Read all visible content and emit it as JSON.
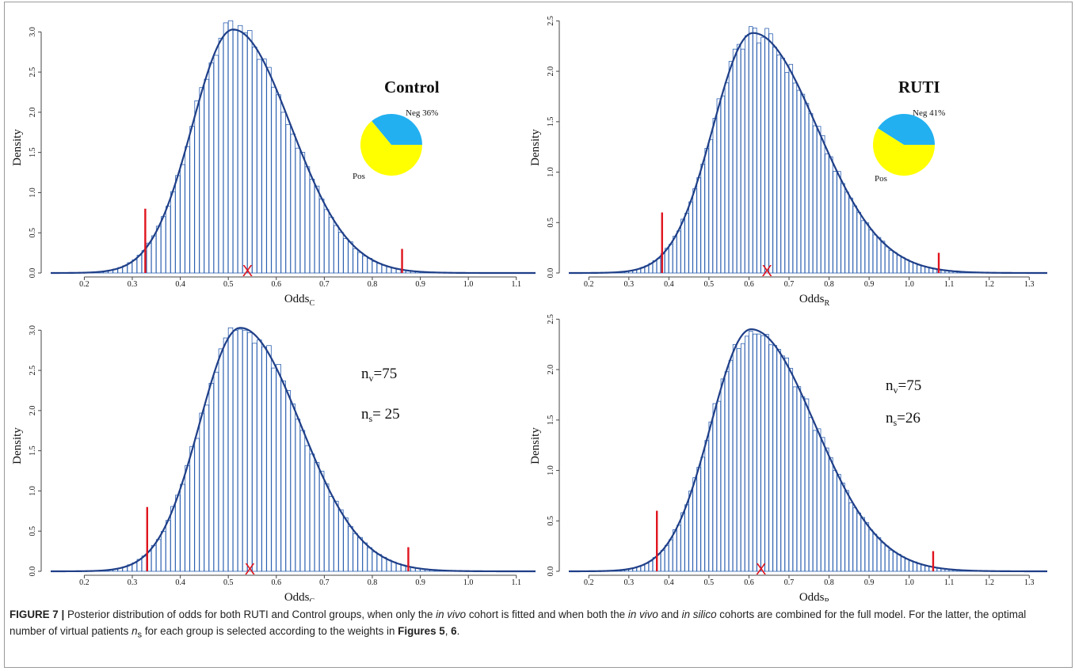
{
  "colors": {
    "bar_stroke": "#2b5fb0",
    "curve": "#1f3f88",
    "interval_line": "#e0141e",
    "mean_marker": "#e0141e",
    "pie_neg": "#22b0f0",
    "pie_pos": "#ffff00"
  },
  "caption": {
    "label": "FIGURE 7 |",
    "t1": " Posterior distribution of odds for both RUTI and Control groups, when only the ",
    "i1": "in vivo",
    "t2": " cohort is fitted and when both the ",
    "i2": "in vivo",
    "t3": " and ",
    "i3": "in silico",
    "t4": " cohorts are combined for the full model. For the latter, the optimal number of virtual patients ",
    "i4": "n",
    "sub4": "s",
    "t5": " for each group is selected according to the weights in ",
    "b1": "Figures 5",
    "t6": ", ",
    "b2": "6",
    "t7": "."
  },
  "chart_data": [
    {
      "type": "bar",
      "ylabel": "Density",
      "xlabel": {
        "main": "Odds",
        "sub": "C"
      },
      "xlim": [
        0.13,
        1.14
      ],
      "ylim": [
        0,
        3.2
      ],
      "xticks": [
        0.2,
        0.3,
        0.4,
        0.5,
        0.6,
        0.7,
        0.8,
        0.9,
        1.0,
        1.1
      ],
      "yticks": [
        0.0,
        0.5,
        1.0,
        1.5,
        2.0,
        2.5,
        3.0
      ],
      "density_curve": {
        "mode": 0.51,
        "peak": 3.03,
        "sigma_left": 0.085,
        "sigma_right": 0.12
      },
      "credible_interval": [
        {
          "x": 0.327,
          "y": 0.8
        },
        {
          "x": 0.862,
          "y": 0.3
        }
      ],
      "mean_marker": {
        "x": 0.54,
        "label": "X"
      },
      "group_label": "Control",
      "pie": {
        "slices": [
          {
            "label": "Neg 36%",
            "value": 36
          },
          {
            "label": "Pos",
            "value": 64
          }
        ]
      }
    },
    {
      "type": "bar",
      "ylabel": "Density",
      "xlabel": {
        "main": "Odds",
        "sub": "R"
      },
      "xlim": [
        0.15,
        1.345
      ],
      "ylim": [
        0,
        2.55
      ],
      "xticks": [
        0.2,
        0.3,
        0.4,
        0.5,
        0.6,
        0.7,
        0.8,
        0.9,
        1.0,
        1.1,
        1.2,
        1.3
      ],
      "yticks": [
        0.0,
        0.5,
        1.0,
        1.5,
        2.0,
        2.5
      ],
      "density_curve": {
        "mode": 0.61,
        "peak": 2.38,
        "sigma_left": 0.1,
        "sigma_right": 0.16
      },
      "credible_interval": [
        {
          "x": 0.383,
          "y": 0.6
        },
        {
          "x": 1.074,
          "y": 0.2
        }
      ],
      "mean_marker": {
        "x": 0.645,
        "label": "X"
      },
      "group_label": "RUTI",
      "pie": {
        "slices": [
          {
            "label": "Neg 41%",
            "value": 41
          },
          {
            "label": "Pos",
            "value": 59
          }
        ]
      }
    },
    {
      "type": "bar",
      "ylabel": "Density",
      "xlabel": {
        "main": "Odds",
        "sub": "C"
      },
      "xlim": [
        0.13,
        1.14
      ],
      "ylim": [
        0,
        3.2
      ],
      "xticks": [
        0.2,
        0.3,
        0.4,
        0.5,
        0.6,
        0.7,
        0.8,
        0.9,
        1.0,
        1.1
      ],
      "yticks": [
        0.0,
        0.5,
        1.0,
        1.5,
        2.0,
        2.5,
        3.0
      ],
      "density_curve": {
        "mode": 0.525,
        "peak": 3.03,
        "sigma_left": 0.085,
        "sigma_right": 0.125
      },
      "credible_interval": [
        {
          "x": 0.331,
          "y": 0.8
        },
        {
          "x": 0.875,
          "y": 0.3
        }
      ],
      "mean_marker": {
        "x": 0.545,
        "label": "X"
      },
      "annotations": [
        {
          "main": "n",
          "sub": "v",
          "rest": "=75"
        },
        {
          "main": "n",
          "sub": "s",
          "rest": "= 25"
        }
      ]
    },
    {
      "type": "bar",
      "ylabel": "Density",
      "xlabel": {
        "main": "Odds",
        "sub": "R"
      },
      "xlim": [
        0.15,
        1.345
      ],
      "ylim": [
        0,
        2.55
      ],
      "xticks": [
        0.2,
        0.3,
        0.4,
        0.5,
        0.6,
        0.7,
        0.8,
        0.9,
        1.0,
        1.1,
        1.2,
        1.3
      ],
      "yticks": [
        0.0,
        0.5,
        1.0,
        1.5,
        2.0,
        2.5
      ],
      "density_curve": {
        "mode": 0.605,
        "peak": 2.4,
        "sigma_left": 0.1,
        "sigma_right": 0.16
      },
      "credible_interval": [
        {
          "x": 0.37,
          "y": 0.6
        },
        {
          "x": 1.06,
          "y": 0.2
        }
      ],
      "mean_marker": {
        "x": 0.63,
        "label": "X"
      },
      "annotations": [
        {
          "main": "n",
          "sub": "v",
          "rest": "=75"
        },
        {
          "main": "n",
          "sub": "s",
          "rest": "=26"
        }
      ]
    }
  ]
}
